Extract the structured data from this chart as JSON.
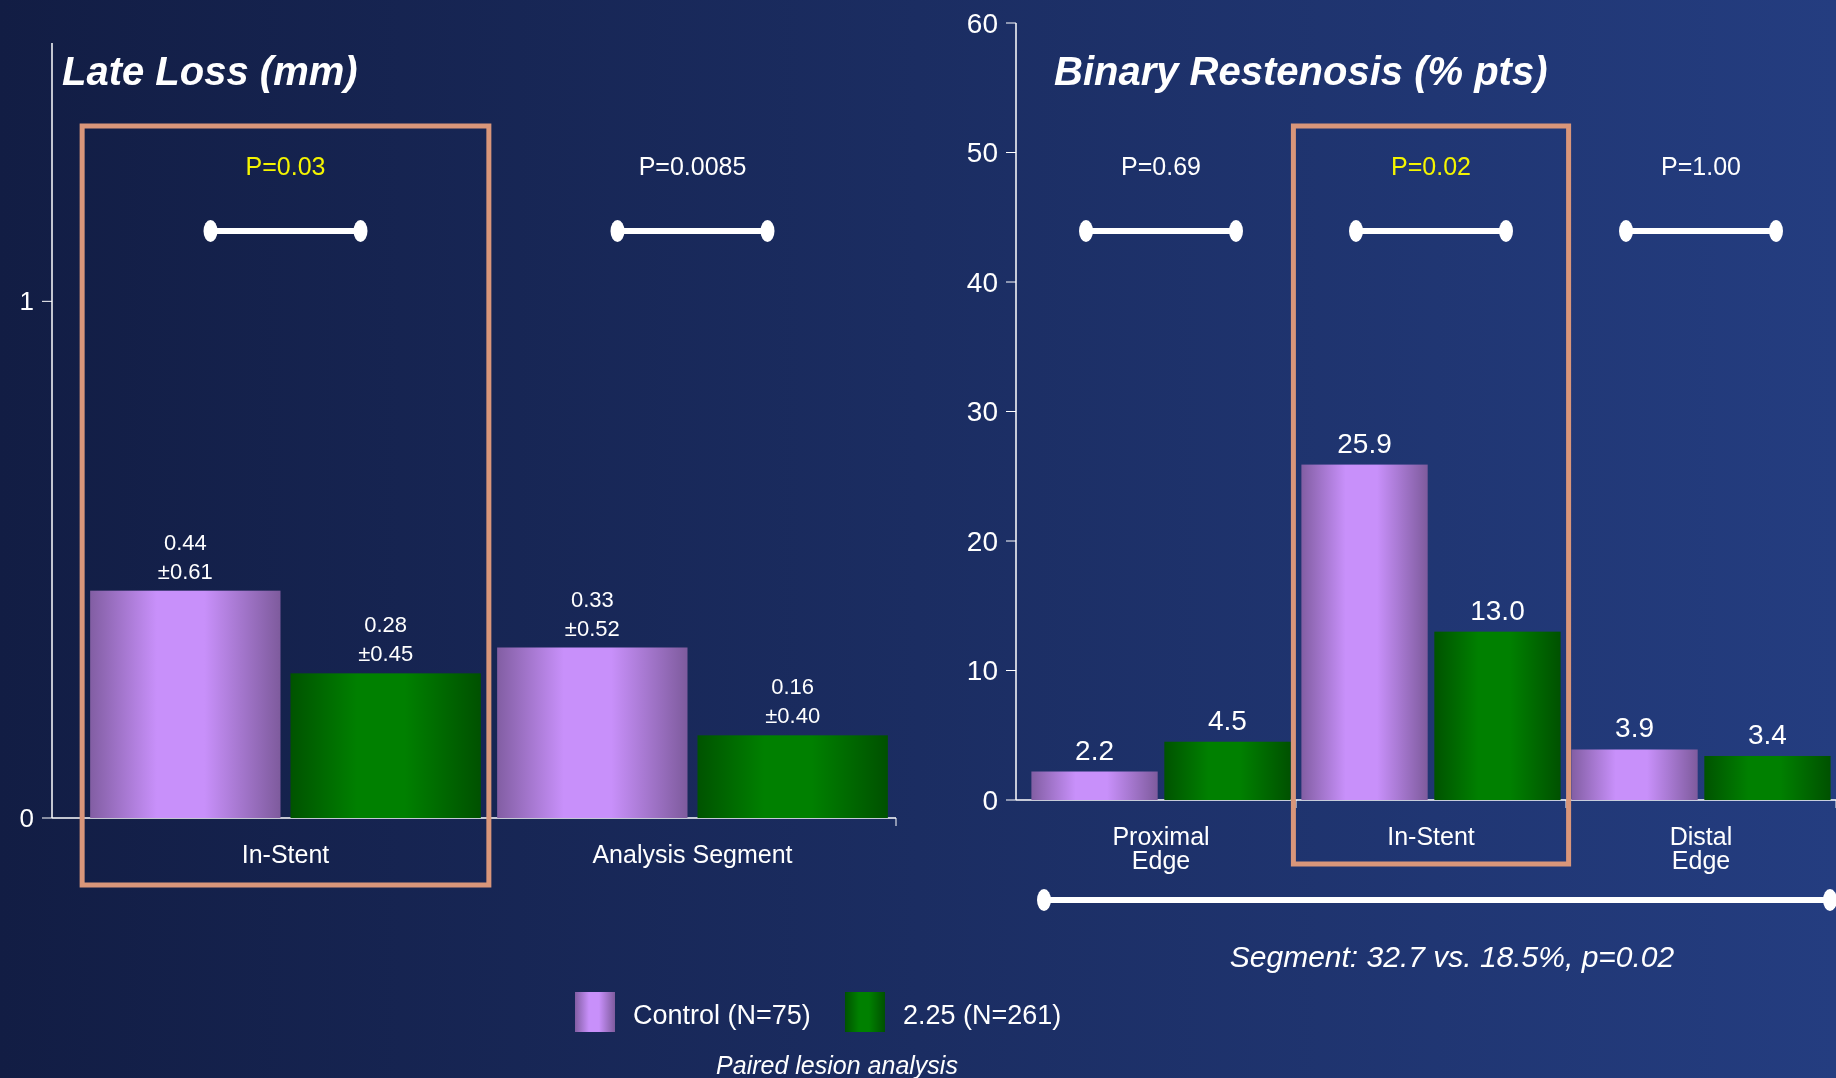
{
  "chart_data": [
    {
      "type": "bar",
      "title": "Late Loss (mm)",
      "categories": [
        "In-Stent",
        "Analysis Segment"
      ],
      "series": [
        {
          "color": "#c890fa",
          "values": [
            0.44,
            0.33
          ],
          "value_labels": [
            "0.44 ±0.61",
            "0.33 ±0.52"
          ]
        },
        {
          "color": "#008000",
          "values": [
            0.28,
            0.16
          ],
          "value_labels": [
            "0.28 ±0.45",
            "0.16 ±0.40"
          ]
        }
      ],
      "ylim": [
        0,
        1.5
      ],
      "yticks": [
        0,
        1
      ],
      "grid": false,
      "legend": false,
      "annotations": [
        "P=0.03",
        "P=0.0085"
      ]
    },
    {
      "type": "bar",
      "title": "Binary Restenosis (% pts)",
      "categories": [
        "Proximal Edge",
        "In-Stent",
        "Distal Edge"
      ],
      "series": [
        {
          "name": "Control (N=75)",
          "color": "#c890fa",
          "values": [
            2.2,
            25.9,
            3.9
          ],
          "value_labels": [
            "2.2",
            "25.9",
            "3.9"
          ]
        },
        {
          "name": "2.25 (N=261)",
          "color": "#008000",
          "values": [
            4.5,
            13.0,
            3.4
          ],
          "value_labels": [
            "4.5",
            "13.0",
            "3.4"
          ]
        }
      ],
      "ylim": [
        0,
        60
      ],
      "yticks": [
        0,
        10,
        20,
        30,
        40,
        50,
        60
      ],
      "grid": false,
      "legend": "bottom",
      "annotations": [
        "P=0.69",
        "P=0.02",
        "P=1.00",
        "Segment: 32.7 vs. 18.5%, p=0.02",
        "Paired lesion analysis"
      ]
    }
  ]
}
